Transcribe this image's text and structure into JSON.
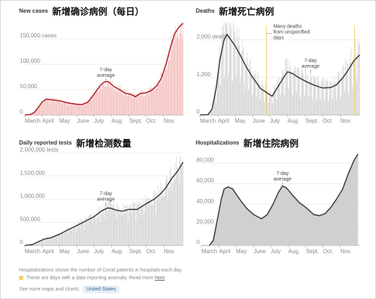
{
  "colors": {
    "cases_bar": "#f2b9b6",
    "cases_line": "#b3242d",
    "gray_bar": "#d0d0d0",
    "gray_line": "#3f3f3f",
    "anomaly": "#f3d36b",
    "grid": "#e3e3e3"
  },
  "panels": [
    {
      "title_en": "New cases",
      "title_zh": "新增确诊病例（每日）"
    },
    {
      "title_en": "Deaths",
      "title_zh": "新增死亡病例"
    },
    {
      "title_en": "Daily reported tests",
      "title_zh": "新增检测数量"
    },
    {
      "title_en": "Hospitalizations",
      "title_zh": "新增住院病例"
    }
  ],
  "footer": {
    "note": "Hospitalizations shows the number of Covid patients in hospitals each day.",
    "anomaly_text": "These are days with a data reporting anomaly. Read more",
    "anomaly_link": "here",
    "more_text": "See more maps and charts:",
    "more_link": "United States"
  },
  "chart_data": [
    {
      "type": "bar",
      "title": "New cases",
      "x_start": "2020-03-01",
      "x_end": "2020-12-05",
      "x_ticks": [
        "March",
        "April",
        "May",
        "June",
        "July",
        "Aug.",
        "Sept.",
        "Oct.",
        "Nov."
      ],
      "y_ticks": [
        "0",
        "50,000",
        "100,000",
        "150,000 cases"
      ],
      "ylim": [
        0,
        185000
      ],
      "annotations": [
        {
          "text": "7-day average",
          "x": "2020-07-22",
          "y": 67000
        }
      ],
      "series": [
        {
          "name": "7-day average",
          "points": [
            [
              "2020-03-01",
              0
            ],
            [
              "2020-03-10",
              500
            ],
            [
              "2020-03-18",
              5000
            ],
            [
              "2020-03-25",
              15000
            ],
            [
              "2020-04-01",
              26000
            ],
            [
              "2020-04-08",
              31000
            ],
            [
              "2020-04-15",
              30000
            ],
            [
              "2020-04-22",
              29500
            ],
            [
              "2020-05-01",
              28000
            ],
            [
              "2020-05-15",
              24000
            ],
            [
              "2020-06-01",
              21000
            ],
            [
              "2020-06-10",
              20500
            ],
            [
              "2020-06-20",
              25000
            ],
            [
              "2020-06-28",
              36000
            ],
            [
              "2020-07-05",
              47000
            ],
            [
              "2020-07-12",
              58000
            ],
            [
              "2020-07-19",
              65000
            ],
            [
              "2020-07-26",
              66000
            ],
            [
              "2020-08-05",
              56000
            ],
            [
              "2020-08-15",
              50000
            ],
            [
              "2020-08-25",
              43000
            ],
            [
              "2020-09-05",
              40000
            ],
            [
              "2020-09-12",
              36000
            ],
            [
              "2020-09-20",
              42000
            ],
            [
              "2020-10-01",
              44000
            ],
            [
              "2020-10-10",
              48000
            ],
            [
              "2020-10-20",
              58000
            ],
            [
              "2020-10-28",
              73000
            ],
            [
              "2020-11-05",
              100000
            ],
            [
              "2020-11-12",
              130000
            ],
            [
              "2020-11-20",
              160000
            ],
            [
              "2020-11-27",
              172000
            ],
            [
              "2020-12-05",
              181000
            ]
          ]
        }
      ]
    },
    {
      "type": "bar",
      "title": "Deaths",
      "x_start": "2020-03-01",
      "x_end": "2020-12-05",
      "x_ticks": [
        "March",
        "April",
        "May",
        "June",
        "July",
        "Aug.",
        "Sept.",
        "Oct.",
        "Nov."
      ],
      "y_ticks": [
        "0",
        "1,000",
        "2,000 deaths"
      ],
      "ylim": [
        0,
        2500
      ],
      "annotations": [
        {
          "text": "Many deaths from unspecified days",
          "x": "2020-06-25",
          "y": 1680
        },
        {
          "text": "7-day average",
          "x": "2020-09-10",
          "y": 1150
        }
      ],
      "anomalies": [
        "2020-06-25",
        "2020-11-26"
      ],
      "series": [
        {
          "name": "7-day average",
          "points": [
            [
              "2020-03-01",
              0
            ],
            [
              "2020-03-15",
              10
            ],
            [
              "2020-03-22",
              150
            ],
            [
              "2020-03-29",
              700
            ],
            [
              "2020-04-05",
              1500
            ],
            [
              "2020-04-12",
              2000
            ],
            [
              "2020-04-17",
              2150
            ],
            [
              "2020-04-24",
              2000
            ],
            [
              "2020-05-01",
              1850
            ],
            [
              "2020-05-10",
              1600
            ],
            [
              "2020-05-20",
              1300
            ],
            [
              "2020-06-01",
              1000
            ],
            [
              "2020-06-15",
              700
            ],
            [
              "2020-06-25",
              600
            ],
            [
              "2020-07-05",
              500
            ],
            [
              "2020-07-15",
              750
            ],
            [
              "2020-07-25",
              1000
            ],
            [
              "2020-08-01",
              1150
            ],
            [
              "2020-08-10",
              1100
            ],
            [
              "2020-08-20",
              1000
            ],
            [
              "2020-09-01",
              900
            ],
            [
              "2020-09-15",
              800
            ],
            [
              "2020-10-01",
              720
            ],
            [
              "2020-10-15",
              730
            ],
            [
              "2020-10-25",
              800
            ],
            [
              "2020-11-05",
              980
            ],
            [
              "2020-11-15",
              1200
            ],
            [
              "2020-11-25",
              1450
            ],
            [
              "2020-12-05",
              1600
            ]
          ]
        }
      ]
    },
    {
      "type": "bar",
      "title": "Daily reported tests",
      "x_start": "2020-03-01",
      "x_end": "2020-12-05",
      "x_ticks": [
        "March",
        "April",
        "May",
        "June",
        "July",
        "Aug.",
        "Sept.",
        "Oct.",
        "Nov."
      ],
      "y_ticks": [
        "0",
        "500,000",
        "1,000,000",
        "1,500,000",
        "2,000,000 tests"
      ],
      "ylim": [
        0,
        2000000
      ],
      "annotations": [
        {
          "text": "7-day average",
          "x": "2020-07-22",
          "y": 880000
        }
      ],
      "series": [
        {
          "name": "7-day average",
          "points": [
            [
              "2020-03-01",
              0
            ],
            [
              "2020-03-15",
              20000
            ],
            [
              "2020-03-25",
              80000
            ],
            [
              "2020-04-05",
              140000
            ],
            [
              "2020-04-15",
              160000
            ],
            [
              "2020-05-01",
              240000
            ],
            [
              "2020-05-15",
              330000
            ],
            [
              "2020-06-01",
              430000
            ],
            [
              "2020-06-15",
              520000
            ],
            [
              "2020-07-01",
              620000
            ],
            [
              "2020-07-15",
              750000
            ],
            [
              "2020-07-25",
              810000
            ],
            [
              "2020-08-01",
              800000
            ],
            [
              "2020-08-10",
              760000
            ],
            [
              "2020-08-20",
              740000
            ],
            [
              "2020-09-01",
              780000
            ],
            [
              "2020-09-15",
              780000
            ],
            [
              "2020-10-01",
              900000
            ],
            [
              "2020-10-15",
              1000000
            ],
            [
              "2020-10-25",
              1100000
            ],
            [
              "2020-11-05",
              1250000
            ],
            [
              "2020-11-15",
              1450000
            ],
            [
              "2020-11-25",
              1600000
            ],
            [
              "2020-12-05",
              1800000
            ]
          ]
        }
      ]
    },
    {
      "type": "area",
      "title": "Hospitalizations",
      "x_start": "2020-03-01",
      "x_end": "2020-12-05",
      "x_ticks": [
        "March",
        "April",
        "May",
        "June",
        "July",
        "Aug.",
        "Sept.",
        "Oct.",
        "Nov."
      ],
      "y_ticks": [
        "0",
        "20,000",
        "40,000",
        "60,000",
        "80,000"
      ],
      "ylim": [
        0,
        90000
      ],
      "annotations": [
        {
          "text": "7-day average",
          "x": "2020-07-22",
          "y": 59000
        }
      ],
      "series": [
        {
          "name": "7-day average",
          "points": [
            [
              "2020-03-15",
              0
            ],
            [
              "2020-03-22",
              5000
            ],
            [
              "2020-03-29",
              25000
            ],
            [
              "2020-04-05",
              45000
            ],
            [
              "2020-04-10",
              55000
            ],
            [
              "2020-04-17",
              57000
            ],
            [
              "2020-04-25",
              55000
            ],
            [
              "2020-05-01",
              50000
            ],
            [
              "2020-05-10",
              43000
            ],
            [
              "2020-05-20",
              36000
            ],
            [
              "2020-06-01",
              30000
            ],
            [
              "2020-06-15",
              26000
            ],
            [
              "2020-06-25",
              30000
            ],
            [
              "2020-07-05",
              40000
            ],
            [
              "2020-07-15",
              52000
            ],
            [
              "2020-07-22",
              58000
            ],
            [
              "2020-07-29",
              56000
            ],
            [
              "2020-08-10",
              48000
            ],
            [
              "2020-08-20",
              42000
            ],
            [
              "2020-09-01",
              37000
            ],
            [
              "2020-09-15",
              30000
            ],
            [
              "2020-09-25",
              29000
            ],
            [
              "2020-10-05",
              31000
            ],
            [
              "2020-10-15",
              37000
            ],
            [
              "2020-10-25",
              45000
            ],
            [
              "2020-11-05",
              55000
            ],
            [
              "2020-11-15",
              70000
            ],
            [
              "2020-11-25",
              83000
            ],
            [
              "2020-12-02",
              89000
            ]
          ]
        }
      ]
    }
  ]
}
